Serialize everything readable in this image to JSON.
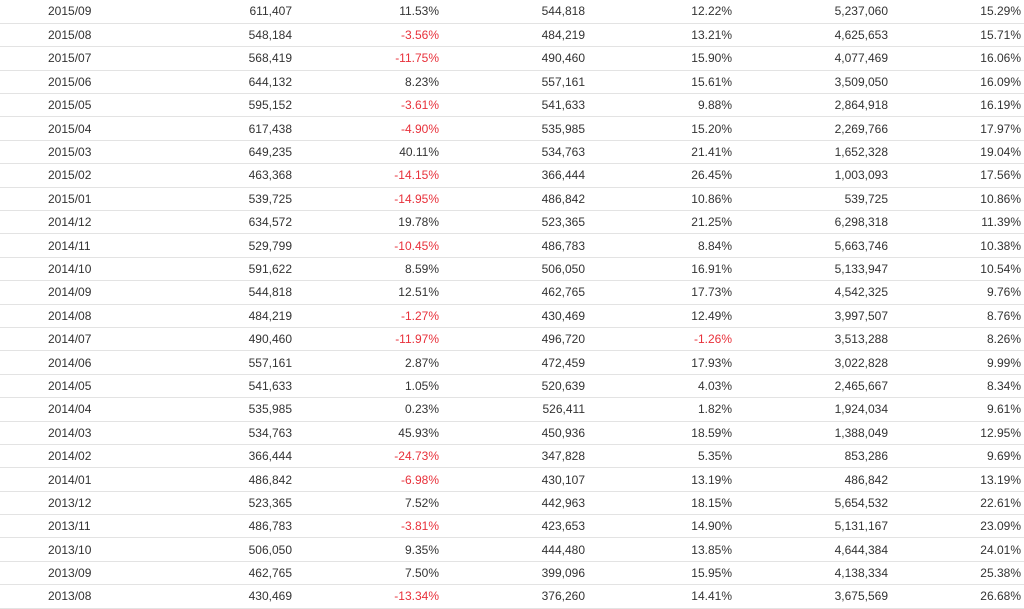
{
  "rows": [
    [
      "2015/09",
      "611,407",
      "11.53%",
      "544,818",
      "12.22%",
      "5,237,060",
      "15.29%"
    ],
    [
      "2015/08",
      "548,184",
      "-3.56%",
      "484,219",
      "13.21%",
      "4,625,653",
      "15.71%"
    ],
    [
      "2015/07",
      "568,419",
      "-11.75%",
      "490,460",
      "15.90%",
      "4,077,469",
      "16.06%"
    ],
    [
      "2015/06",
      "644,132",
      "8.23%",
      "557,161",
      "15.61%",
      "3,509,050",
      "16.09%"
    ],
    [
      "2015/05",
      "595,152",
      "-3.61%",
      "541,633",
      "9.88%",
      "2,864,918",
      "16.19%"
    ],
    [
      "2015/04",
      "617,438",
      "-4.90%",
      "535,985",
      "15.20%",
      "2,269,766",
      "17.97%"
    ],
    [
      "2015/03",
      "649,235",
      "40.11%",
      "534,763",
      "21.41%",
      "1,652,328",
      "19.04%"
    ],
    [
      "2015/02",
      "463,368",
      "-14.15%",
      "366,444",
      "26.45%",
      "1,003,093",
      "17.56%"
    ],
    [
      "2015/01",
      "539,725",
      "-14.95%",
      "486,842",
      "10.86%",
      "539,725",
      "10.86%"
    ],
    [
      "2014/12",
      "634,572",
      "19.78%",
      "523,365",
      "21.25%",
      "6,298,318",
      "11.39%"
    ],
    [
      "2014/11",
      "529,799",
      "-10.45%",
      "486,783",
      "8.84%",
      "5,663,746",
      "10.38%"
    ],
    [
      "2014/10",
      "591,622",
      "8.59%",
      "506,050",
      "16.91%",
      "5,133,947",
      "10.54%"
    ],
    [
      "2014/09",
      "544,818",
      "12.51%",
      "462,765",
      "17.73%",
      "4,542,325",
      "9.76%"
    ],
    [
      "2014/08",
      "484,219",
      "-1.27%",
      "430,469",
      "12.49%",
      "3,997,507",
      "8.76%"
    ],
    [
      "2014/07",
      "490,460",
      "-11.97%",
      "496,720",
      "-1.26%",
      "3,513,288",
      "8.26%"
    ],
    [
      "2014/06",
      "557,161",
      "2.87%",
      "472,459",
      "17.93%",
      "3,022,828",
      "9.99%"
    ],
    [
      "2014/05",
      "541,633",
      "1.05%",
      "520,639",
      "4.03%",
      "2,465,667",
      "8.34%"
    ],
    [
      "2014/04",
      "535,985",
      "0.23%",
      "526,411",
      "1.82%",
      "1,924,034",
      "9.61%"
    ],
    [
      "2014/03",
      "534,763",
      "45.93%",
      "450,936",
      "18.59%",
      "1,388,049",
      "12.95%"
    ],
    [
      "2014/02",
      "366,444",
      "-24.73%",
      "347,828",
      "5.35%",
      "853,286",
      "9.69%"
    ],
    [
      "2014/01",
      "486,842",
      "-6.98%",
      "430,107",
      "13.19%",
      "486,842",
      "13.19%"
    ],
    [
      "2013/12",
      "523,365",
      "7.52%",
      "442,963",
      "18.15%",
      "5,654,532",
      "22.61%"
    ],
    [
      "2013/11",
      "486,783",
      "-3.81%",
      "423,653",
      "14.90%",
      "5,131,167",
      "23.09%"
    ],
    [
      "2013/10",
      "506,050",
      "9.35%",
      "444,480",
      "13.85%",
      "4,644,384",
      "24.01%"
    ],
    [
      "2013/09",
      "462,765",
      "7.50%",
      "399,096",
      "15.95%",
      "4,138,334",
      "25.38%"
    ],
    [
      "2013/08",
      "430,469",
      "-13.34%",
      "376,260",
      "14.41%",
      "3,675,569",
      "26.68%"
    ]
  ],
  "colors": {
    "text": "#333333",
    "negative": "#e8303a",
    "divider": "#e3e3e3"
  }
}
